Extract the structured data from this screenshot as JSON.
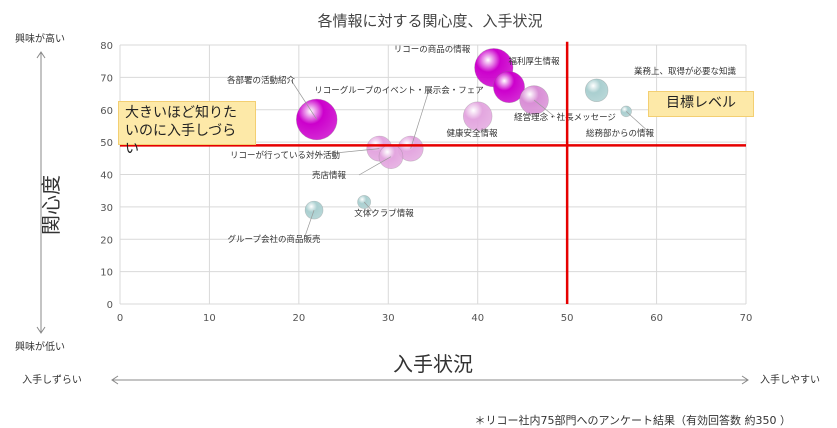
{
  "chart_data": {
    "type": "scatter",
    "title": "各情報に対する関心度、入手状況",
    "xlabel": "入手状況",
    "ylabel": "関心度",
    "xlim": [
      0,
      70
    ],
    "ylim": [
      0,
      80
    ],
    "xticks": [
      0,
      10,
      20,
      30,
      40,
      50,
      60,
      70
    ],
    "yticks": [
      0,
      10,
      20,
      30,
      40,
      50,
      60,
      70,
      80
    ],
    "grid": true,
    "reference_lines": {
      "x": 50,
      "y": 49
    },
    "points": [
      {
        "label": "リコーの商品の情報",
        "x": 41.8,
        "y": 73,
        "size": 3.2,
        "color": "#cc00cc"
      },
      {
        "label": "福利厚生情報",
        "x": 43.5,
        "y": 67,
        "size": 2.6,
        "color": "#cc00cc"
      },
      {
        "label": "業務上、取得が必要な知識",
        "x": 53.3,
        "y": 66,
        "size": 1.9,
        "color": "#aacfd0"
      },
      {
        "label": "経営理念・社長メッセージ",
        "x": 46.3,
        "y": 63,
        "size": 2.4,
        "color": "#d98fd6"
      },
      {
        "label": "総務部からの情報",
        "x": 56.6,
        "y": 59.5,
        "size": 0.9,
        "color": "#aacfd0"
      },
      {
        "label": "健康安全情報",
        "x": 40,
        "y": 58,
        "size": 2.4,
        "color": "#e3a6df"
      },
      {
        "label": "各部署の活動紹介",
        "x": 22,
        "y": 57,
        "size": 3.4,
        "color": "#cc00cc"
      },
      {
        "label": "リコーグループのイベント・展示会・フェア",
        "x": 32.5,
        "y": 48,
        "size": 2.1,
        "color": "#e3a6df"
      },
      {
        "label": "リコーが行っている対外活動",
        "x": 29,
        "y": 48,
        "size": 2.1,
        "color": "#e3a6df"
      },
      {
        "label": "売店情報",
        "x": 30.3,
        "y": 45.5,
        "size": 2.0,
        "color": "#e3a6df"
      },
      {
        "label": "文体クラブ情報",
        "x": 27.3,
        "y": 31.5,
        "size": 1.1,
        "color": "#aacfd0"
      },
      {
        "label": "グループ会社の商品販売",
        "x": 21.7,
        "y": 29,
        "size": 1.5,
        "color": "#aacfd0"
      }
    ]
  },
  "annotations": {
    "callout_left": "大きいほど知りたいのに入手しづらい",
    "callout_right": "目標レベル",
    "interest_high": "興味が高い",
    "interest_low": "興味が低い",
    "access_hard": "入手しずらい",
    "access_easy": "入手しやすい",
    "footnote": "＊リコー社内75部門へのアンケート結果（有効回答数 約350 ）"
  },
  "colors": {
    "reference_line": "#e60000",
    "axis_text": "#444444",
    "grid": "#d9d9d9",
    "callout_fill": "#fde9a8"
  }
}
